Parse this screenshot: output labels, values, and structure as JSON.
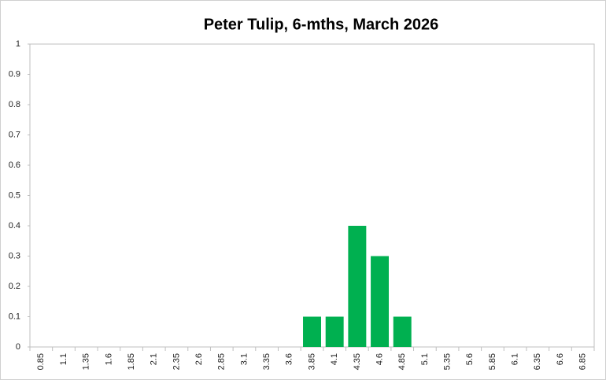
{
  "chart_data": {
    "type": "bar",
    "title": "Peter Tulip, 6-mths, March 2026",
    "categories": [
      "0.85",
      "1.1",
      "1.35",
      "1.6",
      "1.85",
      "2.1",
      "2.35",
      "2.6",
      "2.85",
      "3.1",
      "3.35",
      "3.6",
      "3.85",
      "4.1",
      "4.35",
      "4.6",
      "4.85",
      "5.1",
      "5.35",
      "5.6",
      "5.85",
      "6.1",
      "6.35",
      "6.6",
      "6.85"
    ],
    "values": [
      0,
      0,
      0,
      0,
      0,
      0,
      0,
      0,
      0,
      0,
      0,
      0,
      0.1,
      0.1,
      0.4,
      0.3,
      0.1,
      0,
      0,
      0,
      0,
      0,
      0,
      0,
      0
    ],
    "color": "#00b050",
    "ylim": [
      0,
      1
    ],
    "yticks": [
      0,
      0.1,
      0.2,
      0.3,
      0.4,
      0.5,
      0.6,
      0.7,
      0.8,
      0.9,
      1
    ],
    "grid": false
  }
}
